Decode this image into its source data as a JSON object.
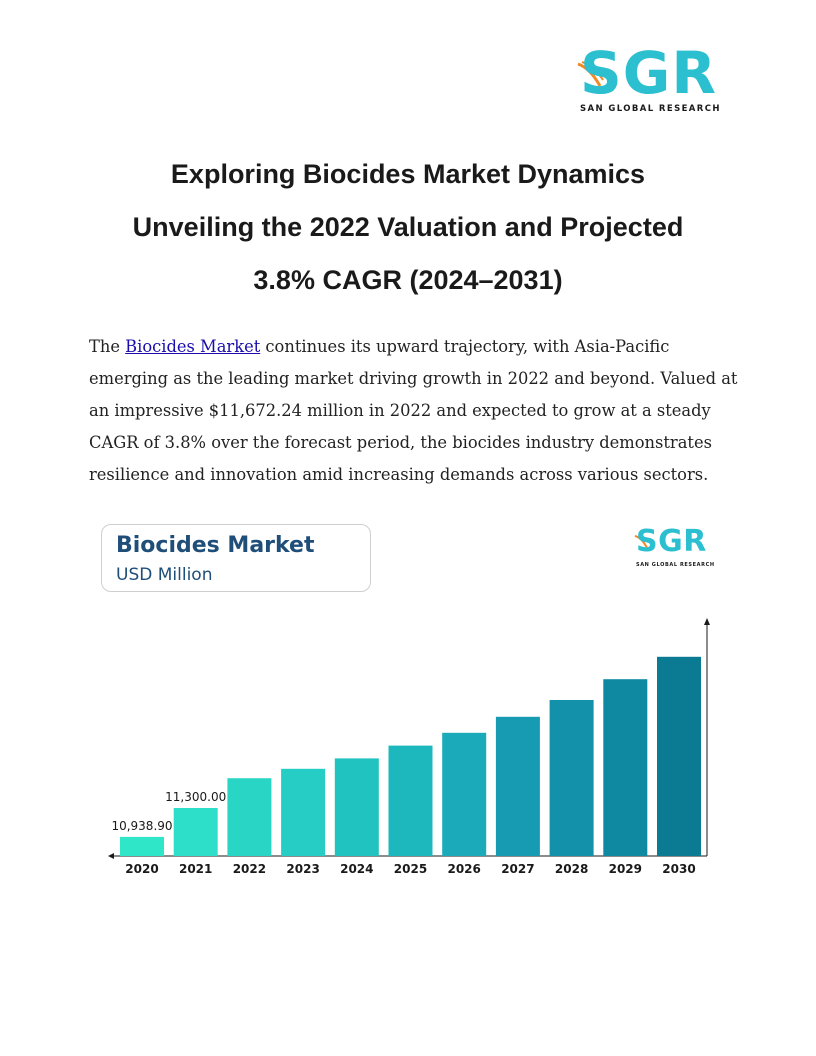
{
  "logo": {
    "letters": [
      "S",
      "G",
      "R"
    ],
    "tagline": "SAN GLOBAL RESEARCH",
    "color_letters": "#2bbfcf",
    "color_swoosh": "#f08a24"
  },
  "title_lines": [
    "Exploring Biocides Market Dynamics",
    "Unveiling the 2022 Valuation and Projected",
    "3.8% CAGR (2024–2031)"
  ],
  "paragraph": {
    "intro": "The ",
    "link_text": "Biocides Market",
    "line1_rest": " continues its upward trajectory, with Asia-Pacific",
    "line2": "emerging as the leading market driving growth in 2022 and beyond. Valued at",
    "line3": "an impressive $11,672.24 million in 2022 and expected to grow at a steady",
    "line4": "CAGR of 3.8% over the forecast period, the biocides industry demonstrates",
    "line5": "resilience and innovation amid increasing demands across various sectors."
  },
  "chart_card": {
    "title": "Biocides Market",
    "subtitle": "USD Million",
    "logo_tagline": "SAN GLOBAL RESEARCH"
  },
  "chart_data": {
    "type": "bar",
    "title": "Biocides Market",
    "ylabel": "USD Million",
    "categories": [
      "2020",
      "2021",
      "2022",
      "2023",
      "2024",
      "2025",
      "2026",
      "2027",
      "2028",
      "2029",
      "2030"
    ],
    "values": [
      10938.9,
      11300.0,
      11672.24,
      11790,
      11920,
      12080,
      12240,
      12440,
      12650,
      12910,
      13190
    ],
    "data_labels": [
      "10,938.90",
      "11,300.00",
      "",
      "",
      "",
      "",
      "",
      "",
      "",
      "",
      ""
    ],
    "ylim": [
      10700,
      13400
    ],
    "bar_colors": [
      "#2fe6c9",
      "#2ddfc8",
      "#29d6c6",
      "#25cdc4",
      "#21c3c1",
      "#1db8be",
      "#1aaab9",
      "#169bb2",
      "#1390aa",
      "#0f88a1",
      "#0a7b93"
    ],
    "grid": false
  }
}
